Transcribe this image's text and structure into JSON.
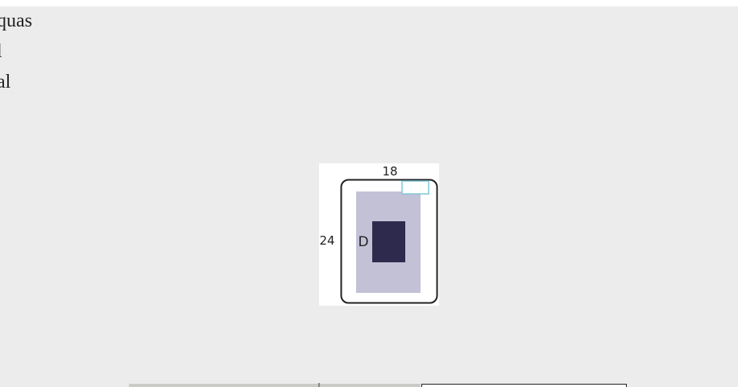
{
  "text_lines": [
    "quas",
    "l",
    "al"
  ],
  "figure": {
    "top_label": "18",
    "side_label": "24",
    "inner_label": "D"
  },
  "colors": {
    "outer_frame": "#222222",
    "light_rect": "#c3c1d6",
    "dark_rect": "#2e2a4e",
    "corner_box": "#7ec8d8"
  }
}
